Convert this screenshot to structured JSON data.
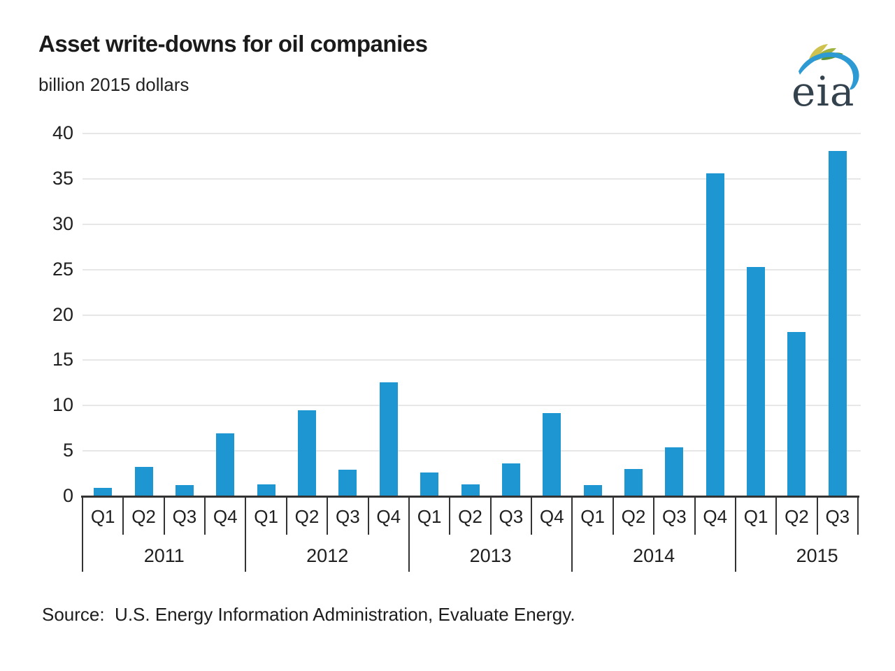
{
  "header": {
    "title": "Asset write-downs for oil companies",
    "subtitle": "billion 2015 dollars"
  },
  "logo": {
    "text": "eia"
  },
  "source_line": "Source:  U.S. Energy Information Administration, Evaluate Energy.",
  "chart_data": {
    "type": "bar",
    "title": "Asset write-downs for oil companies",
    "ylabel": "billion 2015 dollars",
    "ylim": [
      0,
      40
    ],
    "ytick_step": 5,
    "grid": "horizontal",
    "grid_color": "#e7e7e7",
    "bar_color": "#1e96d2",
    "axis_color": "#333333",
    "legend": "none",
    "years": [
      {
        "label": "2011",
        "quarters": [
          "Q1",
          "Q2",
          "Q3",
          "Q4"
        ],
        "values": [
          0.9,
          3.2,
          1.2,
          6.9
        ]
      },
      {
        "label": "2012",
        "quarters": [
          "Q1",
          "Q2",
          "Q3",
          "Q4"
        ],
        "values": [
          1.3,
          9.5,
          2.9,
          12.6
        ]
      },
      {
        "label": "2013",
        "quarters": [
          "Q1",
          "Q2",
          "Q3",
          "Q4"
        ],
        "values": [
          2.6,
          1.3,
          3.6,
          9.2
        ]
      },
      {
        "label": "2014",
        "quarters": [
          "Q1",
          "Q2",
          "Q3",
          "Q4"
        ],
        "values": [
          1.2,
          3.0,
          5.4,
          35.6
        ]
      },
      {
        "label": "2015",
        "quarters": [
          "Q1",
          "Q2",
          "Q3"
        ],
        "values": [
          25.3,
          18.1,
          38.1
        ]
      }
    ]
  }
}
